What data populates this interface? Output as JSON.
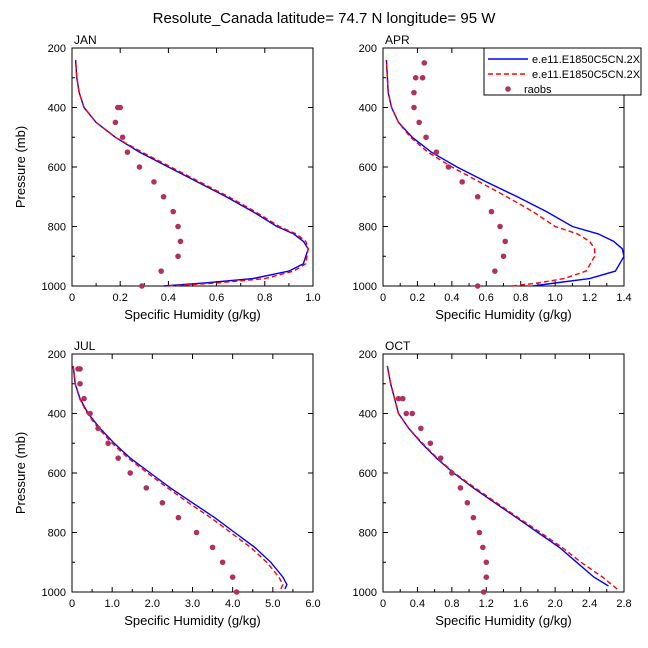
{
  "title": "Resolute_Canada  latitude= 74.7 N longitude= 95 W",
  "colors": {
    "model1": "#0000ff",
    "model2": "#ff0000",
    "obs": "#b03060",
    "axis": "#000000"
  },
  "legend": [
    {
      "label": "e.e11.E1850C5CN.2X",
      "style": "solid",
      "color": "#0000ff"
    },
    {
      "label": "e.e11.E1850C5CN.2X",
      "style": "dashed",
      "color": "#ff0000"
    },
    {
      "label": "raobs",
      "style": "marker",
      "color": "#b03060"
    }
  ],
  "chart_data": [
    {
      "type": "line",
      "panel": "JAN",
      "xlabel": "Specific Humidity (g/kg)",
      "ylabel": "Pressure (mb)",
      "xlim": [
        0,
        1.0
      ],
      "ylim": [
        1000,
        200
      ],
      "xticks": [
        "0",
        "0.2",
        "0.4",
        "0.6",
        "0.8",
        "1.0"
      ],
      "yticks": [
        "200",
        "400",
        "600",
        "800",
        "1000"
      ],
      "series": [
        {
          "name": "e.e11.E1850C5CN.2X",
          "style": "solid",
          "x": [
            0.38,
            0.55,
            0.75,
            0.9,
            0.96,
            0.98,
            0.96,
            0.92,
            0.85,
            0.75,
            0.64,
            0.52,
            0.4,
            0.28,
            0.18,
            0.1,
            0.05,
            0.03,
            0.02,
            0.015
          ],
          "y": [
            1000,
            990,
            975,
            950,
            925,
            875,
            850,
            825,
            800,
            750,
            700,
            650,
            600,
            550,
            500,
            450,
            400,
            350,
            300,
            240
          ]
        },
        {
          "name": "e.e11.E1850C5CN.2X",
          "style": "dashed",
          "x": [
            0.4,
            0.6,
            0.8,
            0.92,
            0.97,
            0.98,
            0.97,
            0.93,
            0.86,
            0.76,
            0.65,
            0.53,
            0.41,
            0.29,
            0.18,
            0.1,
            0.05,
            0.03,
            0.02,
            0.015
          ],
          "y": [
            1000,
            990,
            975,
            950,
            925,
            875,
            850,
            825,
            800,
            750,
            700,
            650,
            600,
            550,
            500,
            450,
            400,
            350,
            300,
            240
          ]
        },
        {
          "name": "raobs",
          "style": "marker",
          "x": [
            0.29,
            0.37,
            0.44,
            0.45,
            0.44,
            0.42,
            0.38,
            0.34,
            0.28,
            0.23,
            0.21,
            0.18,
            0.19,
            0.2
          ],
          "y": [
            1000,
            950,
            900,
            850,
            800,
            750,
            700,
            650,
            600,
            550,
            500,
            450,
            400,
            400
          ]
        }
      ]
    },
    {
      "type": "line",
      "panel": "APR",
      "xlabel": "Specific Humidity (g/kg)",
      "ylabel": "",
      "xlim": [
        0,
        1.4
      ],
      "ylim": [
        1000,
        200
      ],
      "xticks": [
        "0",
        "0.2",
        "0.4",
        "0.6",
        "0.8",
        "1.0",
        "1.2",
        "1.4"
      ],
      "yticks": [
        "200",
        "400",
        "600",
        "800",
        "1000"
      ],
      "series": [
        {
          "name": "e.e11.E1850C5CN.2X",
          "style": "solid",
          "x": [
            0.87,
            1.0,
            1.2,
            1.35,
            1.4,
            1.39,
            1.34,
            1.25,
            1.1,
            0.95,
            0.78,
            0.6,
            0.43,
            0.28,
            0.17,
            0.09,
            0.05,
            0.03,
            0.02
          ],
          "y": [
            1000,
            990,
            975,
            950,
            900,
            875,
            850,
            825,
            800,
            750,
            700,
            650,
            600,
            550,
            500,
            450,
            400,
            350,
            240
          ]
        },
        {
          "name": "e.e11.E1850C5CN.2X",
          "style": "dashed",
          "x": [
            0.75,
            0.9,
            1.05,
            1.18,
            1.23,
            1.23,
            1.2,
            1.13,
            1.0,
            0.87,
            0.72,
            0.56,
            0.4,
            0.26,
            0.16,
            0.09,
            0.05,
            0.03,
            0.02
          ],
          "y": [
            1000,
            990,
            975,
            950,
            900,
            875,
            850,
            825,
            800,
            750,
            700,
            650,
            600,
            550,
            500,
            450,
            400,
            350,
            240
          ]
        },
        {
          "name": "raobs",
          "style": "marker",
          "x": [
            0.55,
            0.65,
            0.7,
            0.71,
            0.68,
            0.63,
            0.55,
            0.46,
            0.38,
            0.31,
            0.25,
            0.21,
            0.18,
            0.18,
            0.19,
            0.23,
            0.24
          ],
          "y": [
            1000,
            950,
            900,
            850,
            800,
            750,
            700,
            650,
            600,
            550,
            500,
            450,
            400,
            350,
            300,
            300,
            250
          ]
        }
      ]
    },
    {
      "type": "line",
      "panel": "JUL",
      "xlabel": "Specific Humidity (g/kg)",
      "ylabel": "Pressure (mb)",
      "xlim": [
        0,
        6.0
      ],
      "ylim": [
        1000,
        200
      ],
      "xticks": [
        "0",
        "1.0",
        "2.0",
        "3.0",
        "4.0",
        "5.0",
        "6.0"
      ],
      "yticks": [
        "200",
        "400",
        "600",
        "800",
        "1000"
      ],
      "series": [
        {
          "name": "e.e11.E1850C5CN.2X",
          "style": "solid",
          "x": [
            5.3,
            5.35,
            5.25,
            4.95,
            4.55,
            4.05,
            3.55,
            3.0,
            2.45,
            1.95,
            1.45,
            1.05,
            0.7,
            0.4,
            0.2,
            0.08,
            0.03
          ],
          "y": [
            990,
            975,
            950,
            900,
            850,
            800,
            750,
            700,
            650,
            600,
            550,
            500,
            450,
            400,
            350,
            300,
            240
          ]
        },
        {
          "name": "e.e11.E1850C5CN.2X",
          "style": "dashed",
          "x": [
            5.2,
            5.25,
            5.15,
            4.85,
            4.45,
            3.95,
            3.45,
            2.9,
            2.38,
            1.88,
            1.4,
            1.0,
            0.66,
            0.38,
            0.19,
            0.08,
            0.03
          ],
          "y": [
            990,
            975,
            950,
            900,
            850,
            800,
            750,
            700,
            650,
            600,
            550,
            500,
            450,
            400,
            350,
            300,
            240
          ]
        },
        {
          "name": "raobs",
          "style": "marker",
          "x": [
            4.1,
            4.0,
            3.75,
            3.5,
            3.1,
            2.65,
            2.25,
            1.85,
            1.45,
            1.15,
            0.9,
            0.65,
            0.45,
            0.3,
            0.2,
            0.15,
            0.2
          ],
          "y": [
            1000,
            950,
            900,
            850,
            800,
            750,
            700,
            650,
            600,
            550,
            500,
            450,
            400,
            350,
            300,
            250,
            250
          ]
        }
      ]
    },
    {
      "type": "line",
      "panel": "OCT",
      "xlabel": "Specific Humidity (g/kg)",
      "ylabel": "",
      "xlim": [
        0,
        2.8
      ],
      "ylim": [
        1000,
        200
      ],
      "xticks": [
        "0",
        "0.4",
        "0.8",
        "1.2",
        "1.6",
        "2.0",
        "2.4",
        "2.8"
      ],
      "yticks": [
        "200",
        "400",
        "600",
        "800",
        "1000"
      ],
      "series": [
        {
          "name": "e.e11.E1850C5CN.2X",
          "style": "solid",
          "x": [
            2.62,
            2.45,
            2.25,
            2.05,
            1.8,
            1.55,
            1.3,
            1.05,
            0.82,
            0.62,
            0.45,
            0.3,
            0.18,
            0.09,
            0.05
          ],
          "y": [
            980,
            950,
            900,
            850,
            800,
            750,
            700,
            650,
            600,
            550,
            500,
            450,
            400,
            300,
            240
          ]
        },
        {
          "name": "e.e11.E1850C5CN.2X",
          "style": "dashed",
          "x": [
            2.72,
            2.55,
            2.3,
            2.08,
            1.83,
            1.57,
            1.32,
            1.07,
            0.83,
            0.63,
            0.46,
            0.3,
            0.18,
            0.09,
            0.05
          ],
          "y": [
            990,
            950,
            900,
            850,
            800,
            750,
            700,
            650,
            600,
            550,
            500,
            450,
            400,
            300,
            240
          ]
        },
        {
          "name": "raobs",
          "style": "marker",
          "x": [
            1.17,
            1.2,
            1.2,
            1.16,
            1.12,
            1.05,
            0.98,
            0.9,
            0.8,
            0.67,
            0.55,
            0.44,
            0.34,
            0.27,
            0.23,
            0.18
          ],
          "y": [
            1000,
            950,
            900,
            850,
            800,
            750,
            700,
            650,
            600,
            550,
            500,
            450,
            400,
            400,
            350,
            350
          ]
        }
      ]
    }
  ]
}
